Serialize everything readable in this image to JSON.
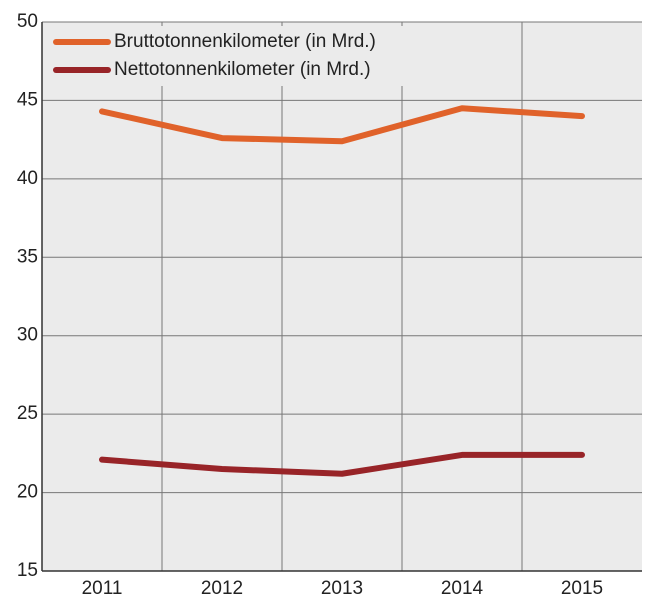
{
  "chart_data": {
    "type": "line",
    "categories": [
      "2011",
      "2012",
      "2013",
      "2014",
      "2015"
    ],
    "series": [
      {
        "name": "Bruttotonnenkilometer (in Mrd.)",
        "color": "#e0622a",
        "values": [
          44.3,
          42.6,
          42.4,
          44.5,
          44.0
        ]
      },
      {
        "name": "Nettotonnenkilometer (in Mrd.)",
        "color": "#982428",
        "values": [
          22.1,
          21.5,
          21.2,
          22.4,
          22.4
        ]
      }
    ],
    "ylim": [
      15,
      50
    ],
    "yticks": [
      15,
      20,
      25,
      30,
      35,
      40,
      45,
      50
    ],
    "grid": true,
    "legend": "upper left"
  }
}
